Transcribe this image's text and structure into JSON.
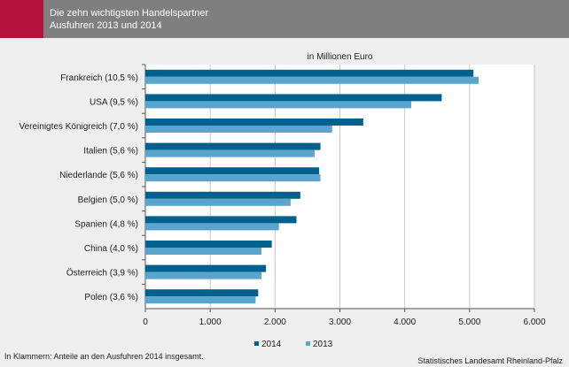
{
  "header": {
    "title_line1": "Die zehn wichtigsten Handelspartner",
    "title_line2": "Ausfuhren 2013 und 2014",
    "accent_color": "#b4123c",
    "band_color": "#7f7f7f"
  },
  "chart_data": {
    "type": "bar",
    "orientation": "horizontal",
    "unit_label": "in Millionen Euro",
    "categories": [
      "Frankreich (10,5 %)",
      "USA (9,5 %)",
      "Vereinigtes Königreich (7,0 %)",
      "Italien (5,6 %)",
      "Niederlande (5,6 %)",
      "Belgien (5,0 %)",
      "Spanien (4,8 %)",
      "China (4,0 %)",
      "Österreich (3,9 %)",
      "Polen (3,6 %)"
    ],
    "series": [
      {
        "name": "2014",
        "color": "#00618f",
        "values": [
          5060,
          4570,
          3360,
          2700,
          2680,
          2390,
          2330,
          1950,
          1860,
          1740
        ]
      },
      {
        "name": "2013",
        "color": "#5aa5cc",
        "values": [
          5140,
          4100,
          2880,
          2610,
          2700,
          2240,
          2060,
          1790,
          1790,
          1700
        ]
      }
    ],
    "xlim": [
      0,
      6000
    ],
    "xticks": [
      0,
      1000,
      2000,
      3000,
      4000,
      5000,
      6000
    ],
    "xtick_labels": [
      "0",
      "1.000",
      "2.000",
      "3.000",
      "4.000",
      "5.000",
      "6.000"
    ],
    "grid": true,
    "legend_position": "bottom"
  },
  "footnote": "In Klammern: Anteile an den Ausfuhren 2014 insgesamt.",
  "source": "Statistisches Landesamt Rheinland-Pfalz"
}
